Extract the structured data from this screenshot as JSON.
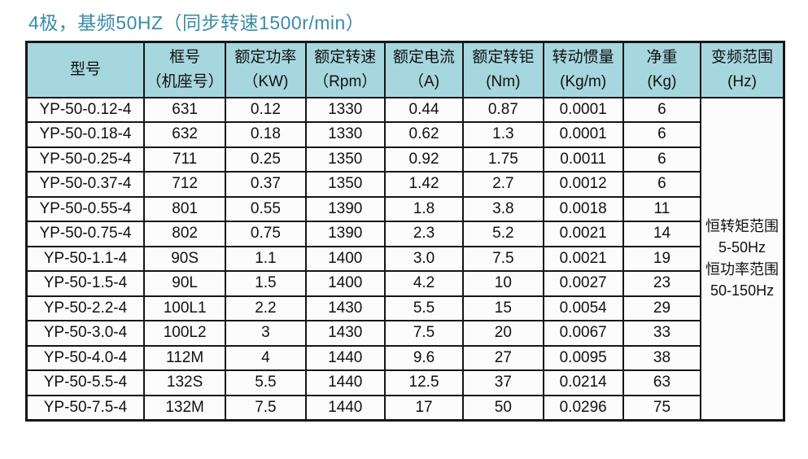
{
  "title": "4极，基频50HZ（同步转速1500r/min）",
  "colors": {
    "title": "#3a8ca8",
    "header_bg": "#a6d6de",
    "border": "#161616",
    "row_bg": "#fcfcfc"
  },
  "table": {
    "columns": [
      {
        "key": "model",
        "label": "型号",
        "unit": ""
      },
      {
        "key": "frame",
        "label": "框号",
        "unit": "（机座号）"
      },
      {
        "key": "power",
        "label": "额定功率",
        "unit": "（KW)"
      },
      {
        "key": "speed",
        "label": "额定转速",
        "unit": "（Rpm）"
      },
      {
        "key": "current",
        "label": "额定电流",
        "unit": "（A)"
      },
      {
        "key": "torque",
        "label": "额定转钜",
        "unit": "(Nm)"
      },
      {
        "key": "inertia",
        "label": "转动惯量",
        "unit": "(Kg/m)"
      },
      {
        "key": "weight",
        "label": "净重",
        "unit": "(Kg)"
      },
      {
        "key": "freq",
        "label": "变频范围",
        "unit": "(Hz)"
      }
    ],
    "rows": [
      [
        "YP-50-0.12-4",
        "631",
        "0.12",
        "1330",
        "0.44",
        "0.87",
        "0.0001",
        "6"
      ],
      [
        "YP-50-0.18-4",
        "632",
        "0.18",
        "1330",
        "0.62",
        "1.3",
        "0.0001",
        "6"
      ],
      [
        "YP-50-0.25-4",
        "711",
        "0.25",
        "1350",
        "0.92",
        "1.75",
        "0.0011",
        "6"
      ],
      [
        "YP-50-0.37-4",
        "712",
        "0.37",
        "1350",
        "1.42",
        "2.7",
        "0.0012",
        "6"
      ],
      [
        "YP-50-0.55-4",
        "801",
        "0.55",
        "1390",
        "1.8",
        "3.8",
        "0.0018",
        "11"
      ],
      [
        "YP-50-0.75-4",
        "802",
        "0.75",
        "1390",
        "2.3",
        "5.2",
        "0.0021",
        "14"
      ],
      [
        "YP-50-1.1-4",
        "90S",
        "1.1",
        "1400",
        "3.0",
        "7.5",
        "0.0021",
        "19"
      ],
      [
        "YP-50-1.5-4",
        "90L",
        "1.5",
        "1400",
        "4.2",
        "10",
        "0.0027",
        "23"
      ],
      [
        "YP-50-2.2-4",
        "100L1",
        "2.2",
        "1430",
        "5.5",
        "15",
        "0.0054",
        "29"
      ],
      [
        "YP-50-3.0-4",
        "100L2",
        "3",
        "1430",
        "7.5",
        "20",
        "0.0067",
        "33"
      ],
      [
        "YP-50-4.0-4",
        "112M",
        "4",
        "1440",
        "9.6",
        "27",
        "0.0095",
        "38"
      ],
      [
        "YP-50-5.5-4",
        "132S",
        "5.5",
        "1440",
        "12.5",
        "37",
        "0.0214",
        "63"
      ],
      [
        "YP-50-7.5-4",
        "132M",
        "7.5",
        "1440",
        "17",
        "50",
        "0.0296",
        "75"
      ]
    ],
    "freq_range_lines": [
      "恒转矩范围",
      "5-50Hz",
      "恒功率范围",
      "50-150Hz"
    ]
  }
}
